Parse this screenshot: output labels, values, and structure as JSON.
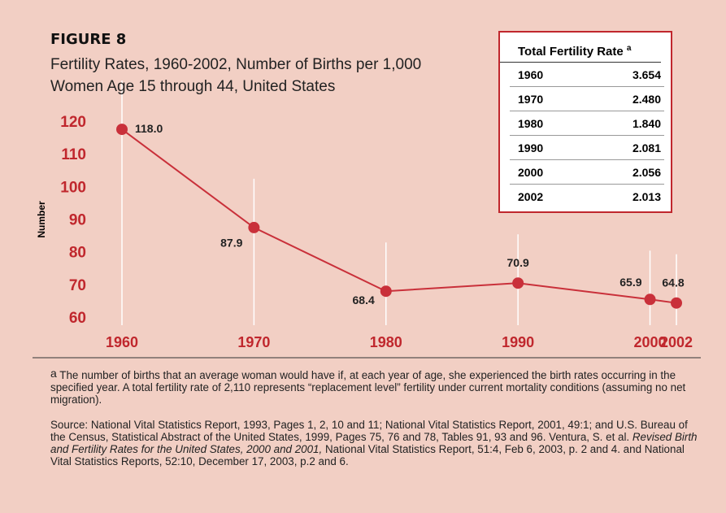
{
  "chart_data": {
    "type": "line",
    "figure_label": "FIGURE 8",
    "title": "Fertility Rates, 1960-2002, Number of Births per 1,000 Women Age 15 through 44, United States",
    "ylabel": "Number",
    "x": [
      1960,
      1970,
      1980,
      1990,
      2000,
      2002
    ],
    "values": [
      118.0,
      87.9,
      68.4,
      70.9,
      65.9,
      64.8
    ],
    "value_labels": [
      "118.0",
      "87.9",
      "68.4",
      "70.9",
      "65.9",
      "64.8"
    ],
    "color": "#c9303a",
    "xlim": [
      1960,
      2002
    ],
    "ylim": [
      58,
      122
    ],
    "xticks": [
      1960,
      1970,
      1980,
      1990,
      2000,
      2002
    ],
    "yticks": [
      60,
      70,
      80,
      90,
      100,
      110,
      120
    ],
    "grid": true
  },
  "table": {
    "title": "Total Fertility Rate",
    "title_note": "a",
    "rows": [
      [
        "1960",
        "3.654"
      ],
      [
        "1970",
        "2.480"
      ],
      [
        "1980",
        "1.840"
      ],
      [
        "1990",
        "2.081"
      ],
      [
        "2000",
        "2.056"
      ],
      [
        "2002",
        "2.013"
      ]
    ]
  },
  "footnote": {
    "mark": "a",
    "text": "The number of births that an average woman would have if, at each year of age, she experienced the birth rates occurring in the specified year. A total fertility rate of 2,110 represents “replacement level” fertility under current mortality conditions (assuming no net migration)."
  },
  "source": {
    "parts": [
      "Source:  National Vital Statistics Report, 1993, Pages 1, 2, 10 and 11; National Vital Statistics Report, 2001, 49:1; and U.S. Bureau of the Census, Statistical Abstract of the United States, 1999, Pages 75, 76 and 78, Tables 91, 93 and 96. Ventura, S. et al. ",
      "Revised Birth and Fertility Rates for the United States, 2000 and 2001,",
      " National Vital Statistics Report, 51:4, Feb 6, 2003, p. 2 and 4. and National Vital Statistics Reports, 52:10, December 17, 2003, p.2 and 6."
    ]
  }
}
